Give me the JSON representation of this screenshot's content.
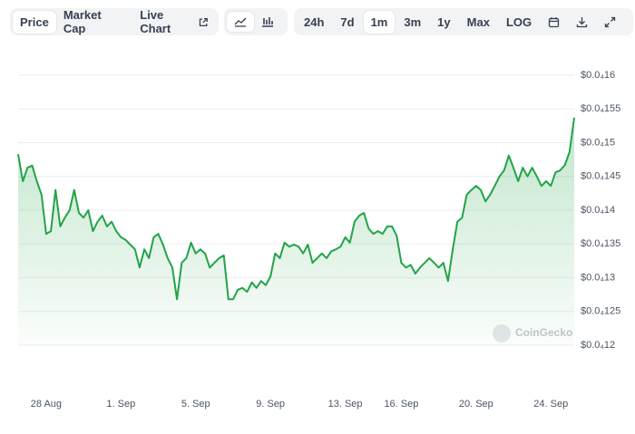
{
  "toolbar": {
    "tabs": [
      "Price",
      "Market Cap",
      "Live Chart"
    ],
    "ranges": [
      "24h",
      "7d",
      "1m",
      "3m",
      "1y",
      "Max",
      "LOG"
    ]
  },
  "watermark": "CoinGecko",
  "chart_data": {
    "type": "line",
    "color": "#22a447",
    "grid": true,
    "categories": [
      null,
      null,
      null,
      null,
      null,
      null,
      "28 Aug",
      null,
      null,
      null,
      null,
      null,
      null,
      null,
      null,
      null,
      null,
      null,
      null,
      null,
      null,
      null,
      "1. Sep",
      null,
      null,
      null,
      null,
      null,
      null,
      null,
      null,
      null,
      null,
      null,
      null,
      null,
      null,
      null,
      "5. Sep",
      null,
      null,
      null,
      null,
      null,
      null,
      null,
      null,
      null,
      null,
      null,
      null,
      null,
      null,
      null,
      "9. Sep",
      null,
      null,
      null,
      null,
      null,
      null,
      null,
      null,
      null,
      null,
      null,
      null,
      null,
      null,
      null,
      "13. Sep",
      null,
      null,
      null,
      null,
      null,
      null,
      null,
      null,
      null,
      null,
      null,
      "16. Sep",
      null,
      null,
      null,
      null,
      null,
      null,
      null,
      null,
      null,
      null,
      null,
      null,
      null,
      null,
      null,
      "20. Sep",
      null,
      null,
      null,
      null,
      null,
      null,
      null,
      null,
      null,
      null,
      null,
      null,
      null,
      null,
      null,
      "24. Sep",
      null,
      null,
      null,
      null,
      null
    ],
    "values": [
      1.483e-05,
      1.443e-05,
      1.463e-05,
      1.466e-05,
      1.443e-05,
      1.423e-05,
      1.365e-05,
      1.369e-05,
      1.43e-05,
      1.376e-05,
      1.389e-05,
      1.4e-05,
      1.43e-05,
      1.396e-05,
      1.389e-05,
      1.4e-05,
      1.369e-05,
      1.383e-05,
      1.392e-05,
      1.376e-05,
      1.383e-05,
      1.369e-05,
      1.36e-05,
      1.356e-05,
      1.349e-05,
      1.342e-05,
      1.315e-05,
      1.342e-05,
      1.329e-05,
      1.36e-05,
      1.365e-05,
      1.349e-05,
      1.329e-05,
      1.315e-05,
      1.268e-05,
      1.322e-05,
      1.329e-05,
      1.352e-05,
      1.336e-05,
      1.342e-05,
      1.336e-05,
      1.315e-05,
      1.322e-05,
      1.329e-05,
      1.333e-05,
      1.268e-05,
      1.268e-05,
      1.282e-05,
      1.285e-05,
      1.279e-05,
      1.293e-05,
      1.285e-05,
      1.295e-05,
      1.289e-05,
      1.302e-05,
      1.336e-05,
      1.329e-05,
      1.352e-05,
      1.346e-05,
      1.349e-05,
      1.346e-05,
      1.336e-05,
      1.349e-05,
      1.322e-05,
      1.329e-05,
      1.336e-05,
      1.329e-05,
      1.339e-05,
      1.342e-05,
      1.346e-05,
      1.36e-05,
      1.352e-05,
      1.383e-05,
      1.392e-05,
      1.396e-05,
      1.373e-05,
      1.365e-05,
      1.369e-05,
      1.365e-05,
      1.376e-05,
      1.376e-05,
      1.362e-05,
      1.322e-05,
      1.315e-05,
      1.319e-05,
      1.306e-05,
      1.315e-05,
      1.322e-05,
      1.329e-05,
      1.322e-05,
      1.315e-05,
      1.322e-05,
      1.295e-05,
      1.342e-05,
      1.383e-05,
      1.389e-05,
      1.423e-05,
      1.43e-05,
      1.436e-05,
      1.43e-05,
      1.413e-05,
      1.423e-05,
      1.436e-05,
      1.45e-05,
      1.459e-05,
      1.481e-05,
      1.463e-05,
      1.443e-05,
      1.463e-05,
      1.45e-05,
      1.463e-05,
      1.45e-05,
      1.436e-05,
      1.443e-05,
      1.436e-05,
      1.456e-05,
      1.459e-05,
      1.467e-05,
      1.486e-05,
      1.537e-05
    ],
    "ylim": [
      1.2e-05,
      1.6e-05
    ],
    "yticks": [
      {
        "value": 1.2e-05,
        "label": "$0.0₄12"
      },
      {
        "value": 1.25e-05,
        "label": "$0.0₄125"
      },
      {
        "value": 1.3e-05,
        "label": "$0.0₄13"
      },
      {
        "value": 1.35e-05,
        "label": "$0.0₄135"
      },
      {
        "value": 1.4e-05,
        "label": "$0.0₄14"
      },
      {
        "value": 1.45e-05,
        "label": "$0.0₄145"
      },
      {
        "value": 1.5e-05,
        "label": "$0.0₄15"
      },
      {
        "value": 1.55e-05,
        "label": "$0.0₄155"
      },
      {
        "value": 1.6e-05,
        "label": "$0.0₄16"
      }
    ]
  }
}
